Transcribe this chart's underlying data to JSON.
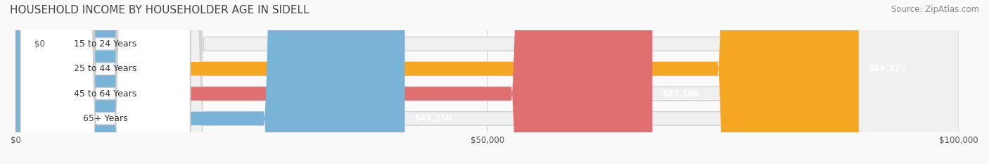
{
  "title": "HOUSEHOLD INCOME BY HOUSEHOLDER AGE IN SIDELL",
  "source": "Source: ZipAtlas.com",
  "categories": [
    "15 to 24 Years",
    "25 to 44 Years",
    "45 to 64 Years",
    "65+ Years"
  ],
  "values": [
    0,
    89375,
    67500,
    41250
  ],
  "bar_colors": [
    "#f4a7b9",
    "#f5a623",
    "#e07070",
    "#7ab3d8"
  ],
  "bg_bar_color": "#f0f0f0",
  "value_labels": [
    "$0",
    "$89,375",
    "$67,500",
    "$41,250"
  ],
  "xlim": [
    0,
    100000
  ],
  "xticks": [
    0,
    50000,
    100000
  ],
  "xtick_labels": [
    "$0",
    "$50,000",
    "$100,000"
  ],
  "bar_height": 0.55,
  "label_box_color": "#ffffff",
  "label_text_color": "#333333",
  "background_color": "#f9f9f9",
  "title_fontsize": 11,
  "source_fontsize": 8.5,
  "label_fontsize": 9,
  "value_fontsize": 8.5
}
